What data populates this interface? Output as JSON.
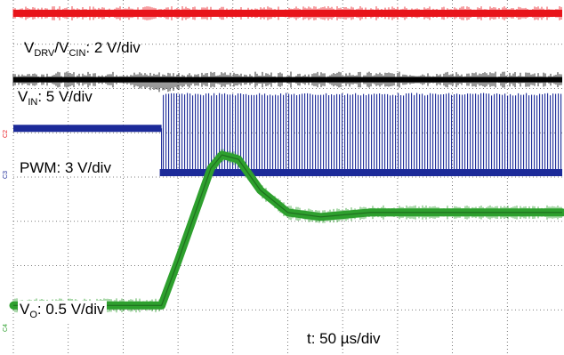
{
  "chart_data": {
    "type": "line",
    "grid": true,
    "grid_divisions": {
      "x": 10,
      "y": 8
    },
    "time_per_div": "50 µs/div",
    "series": [
      {
        "channel": "C1",
        "label_main": "V",
        "label_sub": "DRV",
        "label_sep": "/V",
        "label_sub2": "CIN",
        "label_scale": ": 2 V/div",
        "color": "#e8141b",
        "level_div": 0.3
      },
      {
        "channel": "C2",
        "label_main": "V",
        "label_sub": "IN",
        "label_scale": ": 5 V/div",
        "color": "#000000",
        "level_div": 1.8
      },
      {
        "channel": "C3",
        "label_main": "PWM: 3 V/div",
        "color": "#1c2a99",
        "low_div": 3.9,
        "high_div": 2.1,
        "start_time_div": 2.7,
        "idle_div": 2.9
      },
      {
        "channel": "C4",
        "label_main": "V",
        "label_sub": "O",
        "label_scale": ": 0.5 V/div",
        "color": "#2ea02e",
        "points": [
          [
            0,
            6.9
          ],
          [
            2.7,
            6.9
          ],
          [
            3.0,
            5.9
          ],
          [
            3.4,
            4.5
          ],
          [
            3.6,
            3.8
          ],
          [
            3.8,
            3.5
          ],
          [
            4.1,
            3.6
          ],
          [
            4.5,
            4.3
          ],
          [
            5.0,
            4.8
          ],
          [
            5.6,
            4.9
          ],
          [
            6.5,
            4.8
          ],
          [
            8.0,
            4.8
          ],
          [
            10,
            4.8
          ]
        ]
      }
    ],
    "time_label": "t: 50 µs/div"
  }
}
